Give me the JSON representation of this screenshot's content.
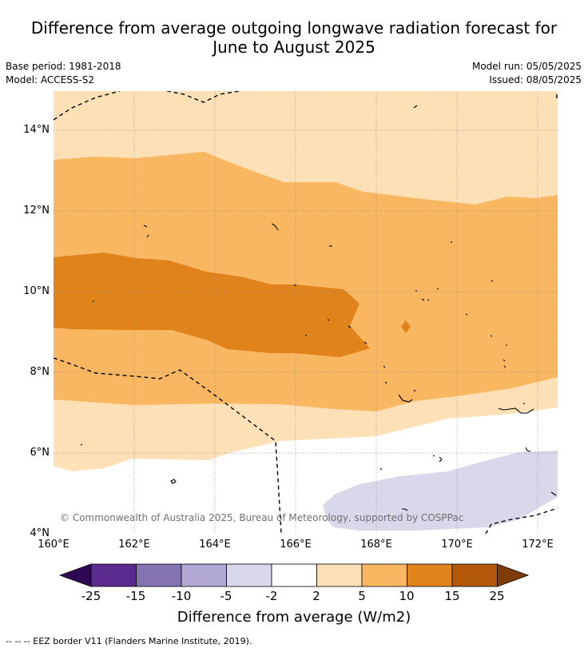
{
  "title_line1": "Difference from average outgoing longwave radiation forecast for",
  "title_line2": "June to August 2025",
  "base_period": "Base period: 1981-2018",
  "model": "Model: ACCESS-S2",
  "model_run": "Model run: 05/05/2025",
  "issued": "Issued: 08/05/2025",
  "lat_ticks": [
    "14°N",
    "12°N",
    "10°N",
    "8°N",
    "6°N",
    "4°N"
  ],
  "lon_ticks": [
    "160°E",
    "162°E",
    "164°E",
    "166°E",
    "168°E",
    "170°E",
    "172°E"
  ],
  "copyright": "© Commonwealth of Australia 2025, Bureau of Meteorology, supported by COSPPac",
  "colorbar": {
    "ticks": [
      "-25",
      "-15",
      "-10",
      "-5",
      "-2",
      "2",
      "5",
      "10",
      "15",
      "25"
    ],
    "label": "Difference from average (W/m2)",
    "colors": [
      "#2e0854",
      "#5b2a8e",
      "#8373b0",
      "#b1a8d3",
      "#d8d8ea",
      "#ffffff",
      "#fde0b5",
      "#f9b762",
      "#e0831a",
      "#b25a0a",
      "#7f3b08"
    ]
  },
  "footnote": "--  --  -- EEZ border V11 (Flanders Marine Institute, 2019).",
  "palette": {
    "lightest_orange": "#fde0b5",
    "light_orange": "#f9b762",
    "medium_orange": "#e0831a",
    "pale_purple": "#d8d8ea"
  }
}
